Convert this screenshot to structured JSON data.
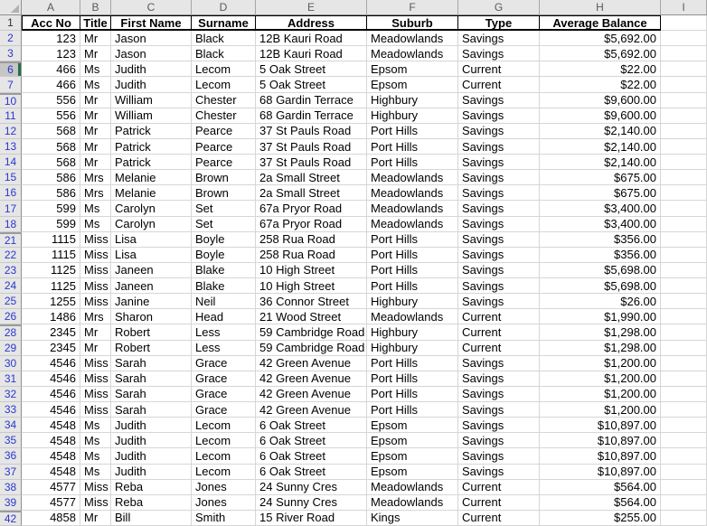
{
  "app": {
    "name": "spreadsheet-worksheet"
  },
  "colors": {
    "header_bg": "#e6e6e6",
    "gridline": "#d6d6d6",
    "filtered_row_number_blue": "#2a38cc",
    "active_row_accent_green": "#217346",
    "header_border_black": "#000000"
  },
  "grid": {
    "corner_label": "",
    "column_headers": [
      {
        "letter": "A",
        "width": 65
      },
      {
        "letter": "B",
        "width": 34
      },
      {
        "letter": "C",
        "width": 89
      },
      {
        "letter": "D",
        "width": 71
      },
      {
        "letter": "E",
        "width": 123
      },
      {
        "letter": "F",
        "width": 101
      },
      {
        "letter": "G",
        "width": 90
      },
      {
        "letter": "H",
        "width": 134
      },
      {
        "letter": "I",
        "width": 51
      }
    ],
    "row_header_width": 24,
    "column_header_height": 17,
    "aligns": [
      "right",
      "left",
      "left",
      "left",
      "left",
      "left",
      "left",
      "right"
    ],
    "header_row": {
      "n": "1",
      "cells": [
        "Acc No",
        "Title",
        "First Name",
        "Surname",
        "Address",
        "Suburb",
        "Type",
        "Average Balance"
      ]
    },
    "rows": [
      {
        "n": "2",
        "gap": false,
        "sel": false,
        "c": [
          "123",
          "Mr",
          "Jason",
          "Black",
          "12B Kauri Road",
          "Meadowlands",
          "Savings",
          "$5,692.00"
        ]
      },
      {
        "n": "3",
        "gap": false,
        "sel": false,
        "c": [
          "123",
          "Mr",
          "Jason",
          "Black",
          "12B Kauri Road",
          "Meadowlands",
          "Savings",
          "$5,692.00"
        ]
      },
      {
        "n": "6",
        "gap": true,
        "sel": true,
        "c": [
          "466",
          "Ms",
          "Judith",
          "Lecom",
          "5 Oak Street",
          "Epsom",
          "Current",
          "$22.00"
        ]
      },
      {
        "n": "7",
        "gap": false,
        "sel": false,
        "c": [
          "466",
          "Ms",
          "Judith",
          "Lecom",
          "5 Oak Street",
          "Epsom",
          "Current",
          "$22.00"
        ]
      },
      {
        "n": "10",
        "gap": true,
        "sel": false,
        "c": [
          "556",
          "Mr",
          "William",
          "Chester",
          "68 Gardin Terrace",
          "Highbury",
          "Savings",
          "$9,600.00"
        ]
      },
      {
        "n": "11",
        "gap": false,
        "sel": false,
        "c": [
          "556",
          "Mr",
          "William",
          "Chester",
          "68 Gardin Terrace",
          "Highbury",
          "Savings",
          "$9,600.00"
        ]
      },
      {
        "n": "12",
        "gap": false,
        "sel": false,
        "c": [
          "568",
          "Mr",
          "Patrick",
          "Pearce",
          "37 St Pauls Road",
          "Port Hills",
          "Savings",
          "$2,140.00"
        ]
      },
      {
        "n": "13",
        "gap": false,
        "sel": false,
        "c": [
          "568",
          "Mr",
          "Patrick",
          "Pearce",
          "37 St Pauls Road",
          "Port Hills",
          "Savings",
          "$2,140.00"
        ]
      },
      {
        "n": "14",
        "gap": false,
        "sel": false,
        "c": [
          "568",
          "Mr",
          "Patrick",
          "Pearce",
          "37 St Pauls Road",
          "Port Hills",
          "Savings",
          "$2,140.00"
        ]
      },
      {
        "n": "15",
        "gap": false,
        "sel": false,
        "c": [
          "586",
          "Mrs",
          "Melanie",
          "Brown",
          "2a Small Street",
          "Meadowlands",
          "Savings",
          "$675.00"
        ]
      },
      {
        "n": "16",
        "gap": false,
        "sel": false,
        "c": [
          "586",
          "Mrs",
          "Melanie",
          "Brown",
          "2a Small Street",
          "Meadowlands",
          "Savings",
          "$675.00"
        ]
      },
      {
        "n": "17",
        "gap": false,
        "sel": false,
        "c": [
          "599",
          "Ms",
          "Carolyn",
          "Set",
          "67a Pryor Road",
          "Meadowlands",
          "Savings",
          "$3,400.00"
        ]
      },
      {
        "n": "18",
        "gap": false,
        "sel": false,
        "c": [
          "599",
          "Ms",
          "Carolyn",
          "Set",
          "67a Pryor Road",
          "Meadowlands",
          "Savings",
          "$3,400.00"
        ]
      },
      {
        "n": "21",
        "gap": true,
        "sel": false,
        "c": [
          "1115",
          "Miss",
          "Lisa",
          "Boyle",
          "258 Rua Road",
          "Port Hills",
          "Savings",
          "$356.00"
        ]
      },
      {
        "n": "22",
        "gap": false,
        "sel": false,
        "c": [
          "1115",
          "Miss",
          "Lisa",
          "Boyle",
          "258 Rua Road",
          "Port Hills",
          "Savings",
          "$356.00"
        ]
      },
      {
        "n": "23",
        "gap": false,
        "sel": false,
        "c": [
          "1125",
          "Miss",
          "Janeen",
          "Blake",
          "10 High Street",
          "Port Hills",
          "Savings",
          "$5,698.00"
        ]
      },
      {
        "n": "24",
        "gap": false,
        "sel": false,
        "c": [
          "1125",
          "Miss",
          "Janeen",
          "Blake",
          "10 High Street",
          "Port Hills",
          "Savings",
          "$5,698.00"
        ]
      },
      {
        "n": "25",
        "gap": false,
        "sel": false,
        "c": [
          "1255",
          "Miss",
          "Janine",
          "Neil",
          "36 Connor Street",
          "Highbury",
          "Savings",
          "$26.00"
        ]
      },
      {
        "n": "26",
        "gap": false,
        "sel": false,
        "c": [
          "1486",
          "Mrs",
          "Sharon",
          "Head",
          "21 Wood Street",
          "Meadowlands",
          "Current",
          "$1,990.00"
        ]
      },
      {
        "n": "28",
        "gap": true,
        "sel": false,
        "c": [
          "2345",
          "Mr",
          "Robert",
          "Less",
          "59 Cambridge Road",
          "Highbury",
          "Current",
          "$1,298.00"
        ]
      },
      {
        "n": "29",
        "gap": false,
        "sel": false,
        "c": [
          "2345",
          "Mr",
          "Robert",
          "Less",
          "59 Cambridge Road",
          "Highbury",
          "Current",
          "$1,298.00"
        ]
      },
      {
        "n": "30",
        "gap": false,
        "sel": false,
        "c": [
          "4546",
          "Miss",
          "Sarah",
          "Grace",
          "42 Green Avenue",
          "Port Hills",
          "Savings",
          "$1,200.00"
        ]
      },
      {
        "n": "31",
        "gap": false,
        "sel": false,
        "c": [
          "4546",
          "Miss",
          "Sarah",
          "Grace",
          "42 Green Avenue",
          "Port Hills",
          "Savings",
          "$1,200.00"
        ]
      },
      {
        "n": "32",
        "gap": false,
        "sel": false,
        "c": [
          "4546",
          "Miss",
          "Sarah",
          "Grace",
          "42 Green Avenue",
          "Port Hills",
          "Savings",
          "$1,200.00"
        ]
      },
      {
        "n": "33",
        "gap": false,
        "sel": false,
        "c": [
          "4546",
          "Miss",
          "Sarah",
          "Grace",
          "42 Green Avenue",
          "Port Hills",
          "Savings",
          "$1,200.00"
        ]
      },
      {
        "n": "34",
        "gap": false,
        "sel": false,
        "c": [
          "4548",
          "Ms",
          "Judith",
          "Lecom",
          "6 Oak Street",
          "Epsom",
          "Savings",
          "$10,897.00"
        ]
      },
      {
        "n": "35",
        "gap": false,
        "sel": false,
        "c": [
          "4548",
          "Ms",
          "Judith",
          "Lecom",
          "6 Oak Street",
          "Epsom",
          "Savings",
          "$10,897.00"
        ]
      },
      {
        "n": "36",
        "gap": false,
        "sel": false,
        "c": [
          "4548",
          "Ms",
          "Judith",
          "Lecom",
          "6 Oak Street",
          "Epsom",
          "Savings",
          "$10,897.00"
        ]
      },
      {
        "n": "37",
        "gap": false,
        "sel": false,
        "c": [
          "4548",
          "Ms",
          "Judith",
          "Lecom",
          "6 Oak Street",
          "Epsom",
          "Savings",
          "$10,897.00"
        ]
      },
      {
        "n": "38",
        "gap": false,
        "sel": false,
        "c": [
          "4577",
          "Miss",
          "Reba",
          "Jones",
          "24 Sunny Cres",
          "Meadowlands",
          "Current",
          "$564.00"
        ]
      },
      {
        "n": "39",
        "gap": false,
        "sel": false,
        "c": [
          "4577",
          "Miss",
          "Reba",
          "Jones",
          "24 Sunny Cres",
          "Meadowlands",
          "Current",
          "$564.00"
        ]
      },
      {
        "n": "42",
        "gap": true,
        "sel": false,
        "c": [
          "4858",
          "Mr",
          "Bill",
          "Smith",
          "15 River Road",
          "Kings",
          "Current",
          "$255.00"
        ]
      }
    ]
  }
}
